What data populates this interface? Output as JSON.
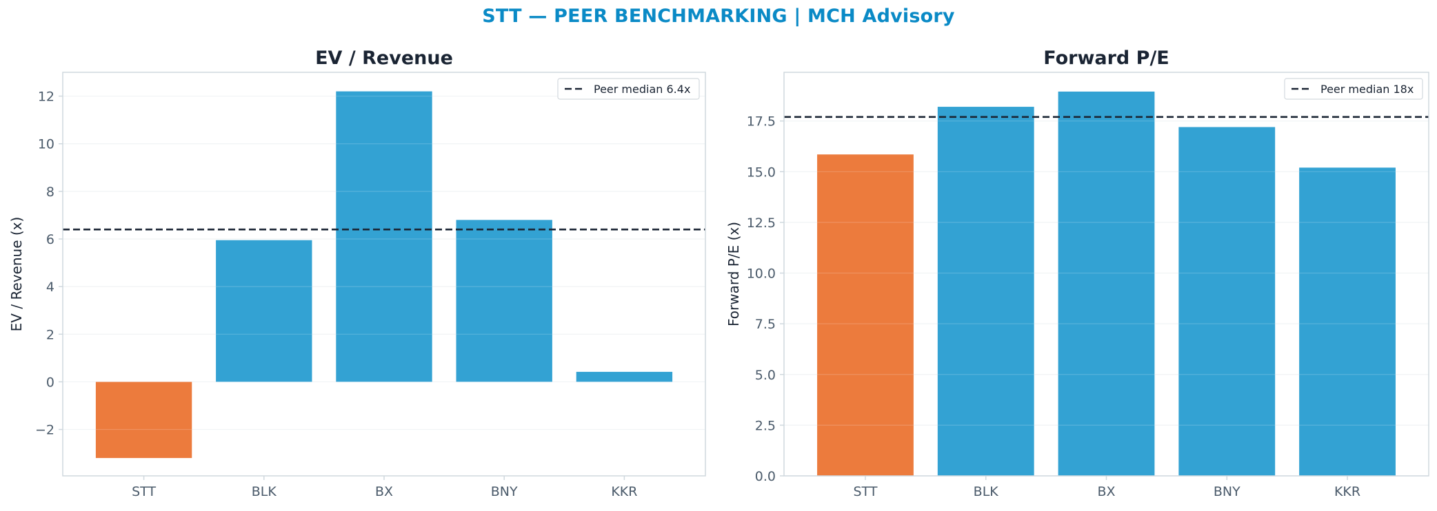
{
  "title": "STT — PEER BENCHMARKING | MCH Advisory",
  "colors": {
    "title": "#0a8ac6",
    "subject": "#ec7b3d",
    "peer": "#33a2d3",
    "median_line": "#1a2433",
    "frame": "#cfd8de",
    "grid": "#eef1f3"
  },
  "chart_data": [
    {
      "type": "bar",
      "title": "EV / Revenue",
      "ylabel": "EV / Revenue (x)",
      "xlabel": "",
      "categories": [
        "STT",
        "BLK",
        "BX",
        "BNY",
        "KKR"
      ],
      "values": [
        -3.2,
        5.95,
        12.2,
        6.8,
        0.42
      ],
      "highlight": "STT",
      "ylim": [
        -3.95,
        13.0
      ],
      "yticks": [
        -2,
        0,
        2,
        4,
        6,
        8,
        10,
        12
      ],
      "ytick_labels": [
        "−2",
        "0",
        "2",
        "4",
        "6",
        "8",
        "10",
        "12"
      ],
      "reference_line": {
        "value": 6.4,
        "label": "Peer median 6.4x"
      },
      "legend": "top-right",
      "grid": true
    },
    {
      "type": "bar",
      "title": "Forward P/E",
      "ylabel": "Forward P/E (x)",
      "xlabel": "",
      "categories": [
        "STT",
        "BLK",
        "BX",
        "BNY",
        "KKR"
      ],
      "values": [
        15.85,
        18.2,
        18.95,
        17.2,
        15.2
      ],
      "highlight": "STT",
      "ylim": [
        0,
        19.9
      ],
      "yticks": [
        0,
        2.5,
        5,
        7.5,
        10,
        12.5,
        15,
        17.5
      ],
      "ytick_labels": [
        "0.0",
        "2.5",
        "5.0",
        "7.5",
        "10.0",
        "12.5",
        "15.0",
        "17.5"
      ],
      "reference_line": {
        "value": 17.7,
        "label": "Peer median 18x"
      },
      "legend": "top-right",
      "grid": true
    }
  ]
}
